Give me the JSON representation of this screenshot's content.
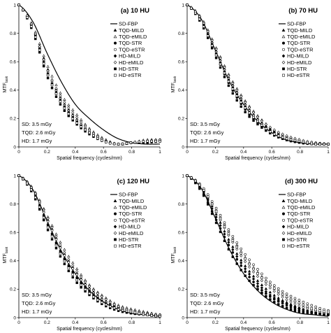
{
  "figure": {
    "y_axis_label": "MTF",
    "y_axis_label_sub": "task",
    "x_axis_label": "Spatial frequency (cycles/mm)"
  },
  "legend_entries": [
    "SD-FBP",
    "TQD-MILD",
    "TQD-eMILD",
    "TQD-STR",
    "TQD-eSTR",
    "HD-MILD",
    "HD-eMILD",
    "HD-STR",
    "HD-eSTR"
  ],
  "marker_styles": {
    "SD-FBP": "line",
    "TQD-MILD": "filled-triangle",
    "TQD-eMILD": "open-triangle",
    "TQD-STR": "filled-circle",
    "TQD-eSTR": "open-circle",
    "HD-MILD": "filled-diamond",
    "HD-eMILD": "open-diamond",
    "HD-STR": "filled-square",
    "HD-eSTR": "open-square"
  },
  "dose_text": [
    "SD: 3.5 mGy",
    "TQD: 2.6 mGy",
    "HD: 1.7 mGy"
  ],
  "chart_data": [
    {
      "type": "scatter",
      "title": "(a) 10 HU",
      "xlabel": "Spatial frequency (cycles/mm)",
      "ylabel": "MTF task",
      "xlim": [
        0,
        1
      ],
      "ylim": [
        0,
        1
      ],
      "xticks": [
        "0",
        "0.2",
        "0.4",
        "0.6",
        "0.8",
        "1"
      ],
      "yticks": [
        "0",
        "0.2",
        "0.4",
        "0.6",
        "0.8",
        "1"
      ],
      "grid": false,
      "legend_position": "top-right",
      "x": [
        0,
        0.1,
        0.2,
        0.3,
        0.4,
        0.5,
        0.6,
        0.7,
        0.8,
        0.9,
        1.0
      ],
      "series": [
        {
          "name": "SD-FBP",
          "values": [
            1.0,
            0.88,
            0.66,
            0.46,
            0.3,
            0.2,
            0.12,
            0.06,
            0.03,
            0.02,
            0.02
          ]
        },
        {
          "name": "TQD-MILD",
          "values": [
            1.0,
            0.84,
            0.56,
            0.34,
            0.21,
            0.11,
            0.05,
            0.02,
            0.03,
            0.04,
            0.05
          ]
        },
        {
          "name": "TQD-eMILD",
          "values": [
            1.0,
            0.85,
            0.58,
            0.37,
            0.24,
            0.13,
            0.06,
            0.02,
            0.03,
            0.05,
            0.05
          ]
        },
        {
          "name": "TQD-STR",
          "values": [
            1.0,
            0.82,
            0.52,
            0.31,
            0.19,
            0.1,
            0.04,
            0.02,
            0.03,
            0.04,
            0.04
          ]
        },
        {
          "name": "TQD-eSTR",
          "values": [
            1.0,
            0.83,
            0.54,
            0.33,
            0.2,
            0.11,
            0.05,
            0.02,
            0.03,
            0.04,
            0.05
          ]
        },
        {
          "name": "HD-MILD",
          "values": [
            1.0,
            0.83,
            0.53,
            0.32,
            0.19,
            0.1,
            0.04,
            0.02,
            0.03,
            0.04,
            0.05
          ]
        },
        {
          "name": "HD-eMILD",
          "values": [
            1.0,
            0.84,
            0.55,
            0.35,
            0.22,
            0.12,
            0.05,
            0.02,
            0.03,
            0.04,
            0.05
          ]
        },
        {
          "name": "HD-STR",
          "values": [
            1.0,
            0.81,
            0.5,
            0.29,
            0.17,
            0.09,
            0.04,
            0.02,
            0.03,
            0.03,
            0.04
          ]
        },
        {
          "name": "HD-eSTR",
          "values": [
            1.0,
            0.82,
            0.52,
            0.31,
            0.18,
            0.1,
            0.04,
            0.02,
            0.03,
            0.04,
            0.04
          ]
        }
      ]
    },
    {
      "type": "scatter",
      "title": "(b) 70 HU",
      "xlabel": "Spatial frequency (cycles/mm)",
      "ylabel": "MTF task",
      "xlim": [
        0,
        1
      ],
      "ylim": [
        0,
        1
      ],
      "xticks": [
        "0",
        "0.2",
        "0.4",
        "0.6",
        "0.8",
        "1"
      ],
      "yticks": [
        "0",
        "0.2",
        "0.4",
        "0.6",
        "0.8",
        "1"
      ],
      "grid": false,
      "legend_position": "top-right",
      "x": [
        0,
        0.1,
        0.2,
        0.3,
        0.4,
        0.5,
        0.6,
        0.7,
        0.8,
        0.9,
        1.0
      ],
      "series": [
        {
          "name": "SD-FBP",
          "values": [
            1.0,
            0.9,
            0.68,
            0.46,
            0.3,
            0.18,
            0.1,
            0.05,
            0.03,
            0.02,
            0.02
          ]
        },
        {
          "name": "TQD-MILD",
          "values": [
            1.0,
            0.9,
            0.69,
            0.48,
            0.32,
            0.2,
            0.12,
            0.07,
            0.04,
            0.03,
            0.02
          ]
        },
        {
          "name": "TQD-eMILD",
          "values": [
            1.0,
            0.91,
            0.71,
            0.5,
            0.34,
            0.22,
            0.13,
            0.08,
            0.05,
            0.03,
            0.02
          ]
        },
        {
          "name": "TQD-STR",
          "values": [
            1.0,
            0.88,
            0.66,
            0.44,
            0.28,
            0.17,
            0.1,
            0.06,
            0.03,
            0.02,
            0.02
          ]
        },
        {
          "name": "TQD-eSTR",
          "values": [
            1.0,
            0.89,
            0.68,
            0.47,
            0.31,
            0.19,
            0.11,
            0.07,
            0.04,
            0.03,
            0.02
          ]
        },
        {
          "name": "HD-MILD",
          "values": [
            1.0,
            0.89,
            0.67,
            0.46,
            0.3,
            0.18,
            0.11,
            0.06,
            0.04,
            0.02,
            0.02
          ]
        },
        {
          "name": "HD-eMILD",
          "values": [
            1.0,
            0.9,
            0.7,
            0.49,
            0.33,
            0.21,
            0.13,
            0.08,
            0.05,
            0.03,
            0.02
          ]
        },
        {
          "name": "HD-STR",
          "values": [
            1.0,
            0.87,
            0.64,
            0.42,
            0.26,
            0.16,
            0.09,
            0.05,
            0.03,
            0.02,
            0.02
          ]
        },
        {
          "name": "HD-eSTR",
          "values": [
            1.0,
            0.88,
            0.66,
            0.45,
            0.29,
            0.18,
            0.1,
            0.06,
            0.04,
            0.02,
            0.02
          ]
        }
      ]
    },
    {
      "type": "scatter",
      "title": "(c) 120 HU",
      "xlabel": "Spatial frequency (cycles/mm)",
      "ylabel": "MTF task",
      "xlim": [
        0,
        1
      ],
      "ylim": [
        0,
        1
      ],
      "xticks": [
        "0",
        "0.2",
        "0.4",
        "0.6",
        "0.8",
        "1"
      ],
      "yticks": [
        "0",
        "0.2",
        "0.4",
        "0.6",
        "0.8",
        "1"
      ],
      "grid": false,
      "legend_position": "top-right",
      "x": [
        0,
        0.1,
        0.2,
        0.3,
        0.4,
        0.5,
        0.6,
        0.7,
        0.8,
        0.9,
        1.0
      ],
      "series": [
        {
          "name": "SD-FBP",
          "values": [
            1.0,
            0.9,
            0.68,
            0.47,
            0.31,
            0.19,
            0.11,
            0.06,
            0.03,
            0.02,
            0.01
          ]
        },
        {
          "name": "TQD-MILD",
          "values": [
            1.0,
            0.9,
            0.7,
            0.49,
            0.33,
            0.21,
            0.13,
            0.08,
            0.05,
            0.03,
            0.02
          ]
        },
        {
          "name": "TQD-eMILD",
          "values": [
            1.0,
            0.91,
            0.72,
            0.52,
            0.36,
            0.23,
            0.15,
            0.09,
            0.06,
            0.04,
            0.02
          ]
        },
        {
          "name": "TQD-STR",
          "values": [
            1.0,
            0.88,
            0.66,
            0.45,
            0.29,
            0.18,
            0.1,
            0.06,
            0.04,
            0.02,
            0.01
          ]
        },
        {
          "name": "TQD-eSTR",
          "values": [
            1.0,
            0.9,
            0.69,
            0.48,
            0.32,
            0.2,
            0.12,
            0.07,
            0.05,
            0.03,
            0.02
          ]
        },
        {
          "name": "HD-MILD",
          "values": [
            1.0,
            0.89,
            0.67,
            0.46,
            0.3,
            0.19,
            0.11,
            0.07,
            0.04,
            0.03,
            0.02
          ]
        },
        {
          "name": "HD-eMILD",
          "values": [
            1.0,
            0.9,
            0.71,
            0.5,
            0.34,
            0.22,
            0.14,
            0.08,
            0.05,
            0.03,
            0.02
          ]
        },
        {
          "name": "HD-STR",
          "values": [
            1.0,
            0.87,
            0.63,
            0.42,
            0.26,
            0.16,
            0.09,
            0.05,
            0.03,
            0.02,
            0.01
          ]
        },
        {
          "name": "HD-eSTR",
          "values": [
            1.0,
            0.88,
            0.65,
            0.44,
            0.28,
            0.17,
            0.1,
            0.06,
            0.04,
            0.02,
            0.01
          ]
        }
      ]
    },
    {
      "type": "scatter",
      "title": "(d) 300 HU",
      "xlabel": "Spatial frequency (cycles/mm)",
      "ylabel": "MTF task",
      "xlim": [
        0,
        1
      ],
      "ylim": [
        0,
        1
      ],
      "xticks": [
        "0",
        "0.2",
        "0.4",
        "0.6",
        "0.8",
        "1"
      ],
      "yticks": [
        "0",
        "0.2",
        "0.4",
        "0.6",
        "0.8",
        "1"
      ],
      "grid": false,
      "legend_position": "top-right",
      "x": [
        0,
        0.1,
        0.2,
        0.3,
        0.4,
        0.5,
        0.6,
        0.7,
        0.8,
        0.9,
        1.0
      ],
      "series": [
        {
          "name": "SD-FBP",
          "values": [
            1.0,
            0.91,
            0.7,
            0.48,
            0.31,
            0.19,
            0.11,
            0.06,
            0.03,
            0.02,
            0.01
          ]
        },
        {
          "name": "TQD-MILD",
          "values": [
            1.0,
            0.92,
            0.74,
            0.54,
            0.38,
            0.26,
            0.17,
            0.11,
            0.07,
            0.04,
            0.03
          ]
        },
        {
          "name": "TQD-eMILD",
          "values": [
            1.0,
            0.93,
            0.77,
            0.6,
            0.44,
            0.32,
            0.22,
            0.15,
            0.1,
            0.06,
            0.04
          ]
        },
        {
          "name": "TQD-STR",
          "values": [
            1.0,
            0.9,
            0.7,
            0.5,
            0.34,
            0.22,
            0.14,
            0.09,
            0.05,
            0.03,
            0.02
          ]
        },
        {
          "name": "TQD-eSTR",
          "values": [
            1.0,
            0.93,
            0.78,
            0.61,
            0.46,
            0.34,
            0.24,
            0.17,
            0.12,
            0.08,
            0.05
          ]
        },
        {
          "name": "HD-MILD",
          "values": [
            1.0,
            0.91,
            0.72,
            0.52,
            0.36,
            0.24,
            0.15,
            0.1,
            0.06,
            0.04,
            0.02
          ]
        },
        {
          "name": "HD-eMILD",
          "values": [
            1.0,
            0.92,
            0.75,
            0.57,
            0.41,
            0.29,
            0.2,
            0.13,
            0.08,
            0.05,
            0.03
          ]
        },
        {
          "name": "HD-STR",
          "values": [
            1.0,
            0.89,
            0.68,
            0.47,
            0.31,
            0.2,
            0.12,
            0.07,
            0.04,
            0.03,
            0.02
          ]
        },
        {
          "name": "HD-eSTR",
          "values": [
            1.0,
            0.92,
            0.76,
            0.58,
            0.43,
            0.31,
            0.22,
            0.15,
            0.1,
            0.06,
            0.04
          ]
        }
      ]
    }
  ]
}
